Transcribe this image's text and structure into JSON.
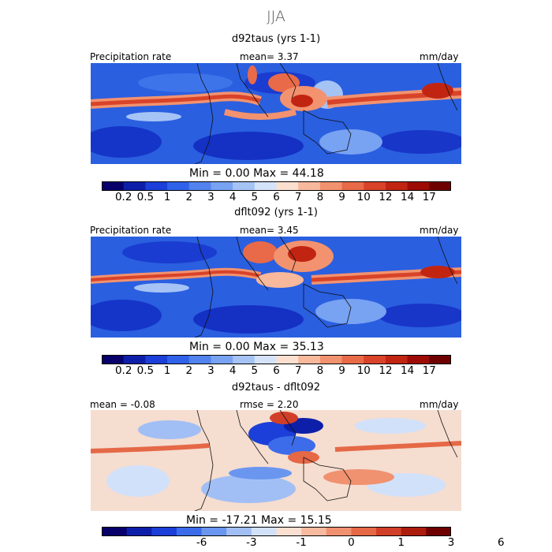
{
  "season_title": "JJA",
  "panels": [
    {
      "title": "d92taus (yrs 1-1)",
      "left_label": "Precipitation rate",
      "center_label": "mean=   3.37",
      "units": "mm/day",
      "minmax": "Min =    0.00  Max =   44.18"
    },
    {
      "title": "dflt092 (yrs 1-1)",
      "left_label": "Precipitation rate",
      "center_label": "mean=   3.45",
      "units": "mm/day",
      "minmax": "Min =    0.00  Max =   35.13"
    },
    {
      "title": "d92taus - dflt092",
      "left_label": "mean =   -0.08",
      "center_label": "rmse =    2.20",
      "units": "mm/day",
      "minmax": "Min = -17.21  Max =   15.15"
    }
  ],
  "colorbar_abs": {
    "colors": [
      "#08006b",
      "#0d1fa8",
      "#1b3fd8",
      "#2f62e8",
      "#5182ee",
      "#78a2f2",
      "#a6c3f6",
      "#d4e2fa",
      "#fbdfcf",
      "#f8b89c",
      "#f2926f",
      "#e86a48",
      "#d84329",
      "#c12512",
      "#9c0c04",
      "#6e0000"
    ],
    "tick_labels": [
      "0.2",
      "0.5",
      "1",
      "2",
      "3",
      "4",
      "5",
      "6",
      "7",
      "8",
      "9",
      "10",
      "12",
      "14",
      "17"
    ]
  },
  "colorbar_diff": {
    "colors": [
      "#08006b",
      "#0d1fa8",
      "#1b3fd8",
      "#3c6ce9",
      "#6a96f0",
      "#a2bff5",
      "#d2e1fa",
      "#fbe0d2",
      "#f8ba9f",
      "#f09170",
      "#e56847",
      "#d13f28",
      "#ac1c0c",
      "#6e0000"
    ],
    "tick_labels": [
      "-6",
      "-3",
      "-1",
      "0",
      "1",
      "3",
      "6"
    ]
  },
  "colors": {
    "ocean_abs": "#2a5fe0",
    "land_abs": "#3d74ea",
    "itcz": "#e0522e",
    "diff_base": "#f5ddd0",
    "coast": "#111111"
  }
}
